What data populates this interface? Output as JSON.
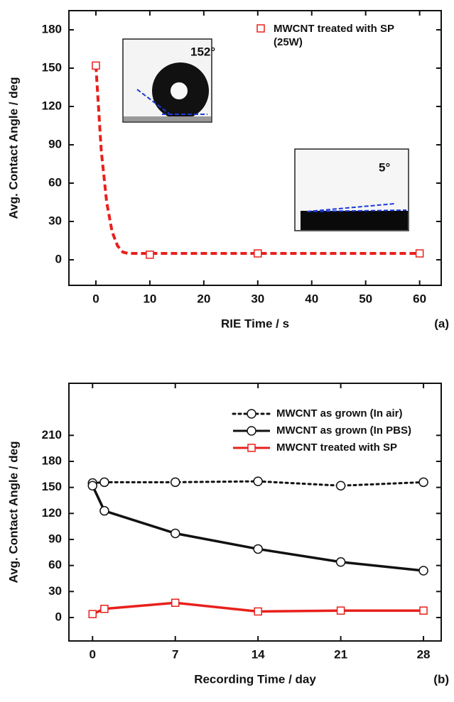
{
  "chart_data": [
    {
      "type": "scatter",
      "x_label": "RIE Time / s",
      "y_label": "Avg. Contact Angle / deg",
      "panel_label": "(a)",
      "series": [
        {
          "name": "MWCNT treated with SP (25W)",
          "color": "#e8201c",
          "marker": "square",
          "x": [
            0,
            10,
            30,
            60
          ],
          "values": [
            152,
            4,
            5,
            5
          ]
        }
      ],
      "fit": {
        "color": "#e8201c",
        "dash": "dashed",
        "x": [
          0,
          1,
          2,
          3,
          4,
          5,
          6,
          60
        ],
        "values": [
          152,
          85,
          45,
          22,
          11,
          6,
          5,
          5
        ]
      },
      "annotations": [
        "152°",
        "5°"
      ],
      "xlim": [
        -5,
        64
      ],
      "xticks": [
        0,
        10,
        20,
        30,
        40,
        50,
        60
      ],
      "ylim": [
        -20,
        195
      ],
      "yticks": [
        0,
        30,
        60,
        90,
        120,
        150,
        180
      ]
    },
    {
      "type": "line",
      "x_label": "Recording Time / day",
      "y_label": "Avg. Contact Angle / deg",
      "panel_label": "(b)",
      "series": [
        {
          "name": "MWCNT as grown (In air)",
          "color": "#111111",
          "marker": "circle",
          "dash": "dotted",
          "x": [
            0,
            1,
            7,
            14,
            21,
            28
          ],
          "values": [
            155,
            156,
            156,
            157,
            152,
            156
          ]
        },
        {
          "name": "MWCNT as grown (In PBS)",
          "color": "#111111",
          "marker": "circle",
          "dash": "solid",
          "x": [
            0,
            1,
            7,
            14,
            21,
            28
          ],
          "values": [
            152,
            123,
            97,
            79,
            64,
            54
          ]
        },
        {
          "name": "MWCNT treated with SP",
          "color": "#e8201c",
          "marker": "square",
          "dash": "solid",
          "x": [
            0,
            1,
            7,
            14,
            21,
            28
          ],
          "values": [
            4,
            10,
            17,
            7,
            8,
            8
          ]
        }
      ],
      "xlim": [
        -2,
        29.5
      ],
      "xticks": [
        0,
        7,
        14,
        21,
        28
      ],
      "ylim": [
        -27,
        270
      ],
      "yticks": [
        0,
        30,
        60,
        90,
        120,
        150,
        180,
        210
      ]
    }
  ]
}
